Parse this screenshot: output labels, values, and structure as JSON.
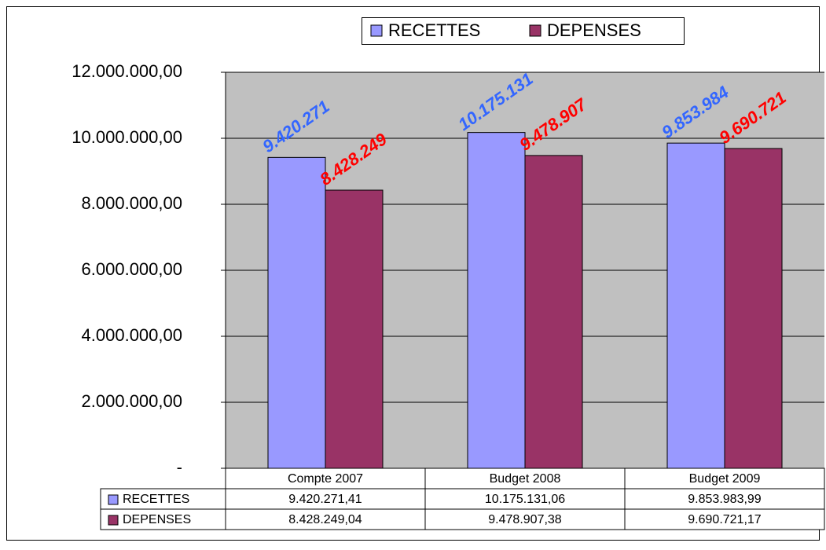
{
  "chart_data": {
    "type": "bar",
    "categories": [
      "Compte 2007",
      "Budget 2008",
      "Budget 2009"
    ],
    "series": [
      {
        "name": "RECETTES",
        "color": "#9999ff",
        "label_color": "#3366ff",
        "values": [
          9420271.41,
          10175131.06,
          9853983.99
        ],
        "value_labels": [
          "9.420.271",
          "10.175.131",
          "9.853.984"
        ],
        "table_labels": [
          "9.420.271,41",
          "10.175.131,06",
          "9.853.983,99"
        ]
      },
      {
        "name": "DEPENSES",
        "color": "#993366",
        "label_color": "#ff0000",
        "values": [
          8428249.04,
          9478907.38,
          9690721.17
        ],
        "value_labels": [
          "8.428.249",
          "9.478.907",
          "9.690.721"
        ],
        "table_labels": [
          "8.428.249,04",
          "9.478.907,38",
          "9.690.721,17"
        ]
      }
    ],
    "ylim": [
      0,
      12000000
    ],
    "yticks": [
      {
        "value": 0,
        "label": "-"
      },
      {
        "value": 2000000,
        "label": "2.000.000,00"
      },
      {
        "value": 4000000,
        "label": "4.000.000,00"
      },
      {
        "value": 6000000,
        "label": "6.000.000,00"
      },
      {
        "value": 8000000,
        "label": "8.000.000,00"
      },
      {
        "value": 10000000,
        "label": "10.000.000,00"
      },
      {
        "value": 12000000,
        "label": "12.000.000,00"
      }
    ],
    "grid": true,
    "legend": "top",
    "plot_background": "#c0c0c0"
  }
}
